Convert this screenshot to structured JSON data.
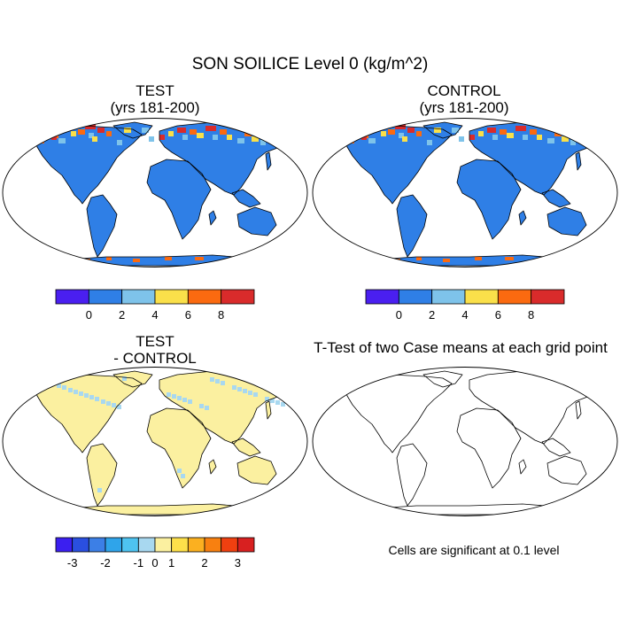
{
  "title": "SON SOILICE Level 0 (kg/m^2)",
  "panels": {
    "test": {
      "title_line1": "TEST",
      "title_line2": "(yrs 181-200)"
    },
    "control": {
      "title_line1": "CONTROL",
      "title_line2": "(yrs 181-200)"
    },
    "diff": {
      "title_line1": "TEST",
      "title_line2": "- CONTROL"
    },
    "ttest": {
      "title": "T-Test of two Case means at each grid point",
      "note": "Cells are significant at 0.1 level"
    }
  },
  "colorbars": {
    "main": {
      "colors": [
        "#4a1ff0",
        "#2f7fe6",
        "#7ec3ea",
        "#fae04a",
        "#fb6a10",
        "#d92b2b"
      ],
      "labels": [
        "0",
        "2",
        "4",
        "6",
        "8"
      ]
    },
    "diff": {
      "colors": [
        "#3b1ff0",
        "#2a4fe0",
        "#3c7fe6",
        "#2fa4ea",
        "#4ec3f0",
        "#a8d8f0",
        "#fbf0a0",
        "#fde04a",
        "#fbb020",
        "#f88010",
        "#f04010",
        "#d82020"
      ],
      "labels": [
        "-3",
        "-2",
        "-1",
        "0",
        "1",
        "2",
        "3"
      ]
    }
  },
  "colors": {
    "land_main": "#2f7fe6",
    "land_diff": "#fbf0a0",
    "diff_negative": "#a8d8f0",
    "significant": "#e00000"
  }
}
